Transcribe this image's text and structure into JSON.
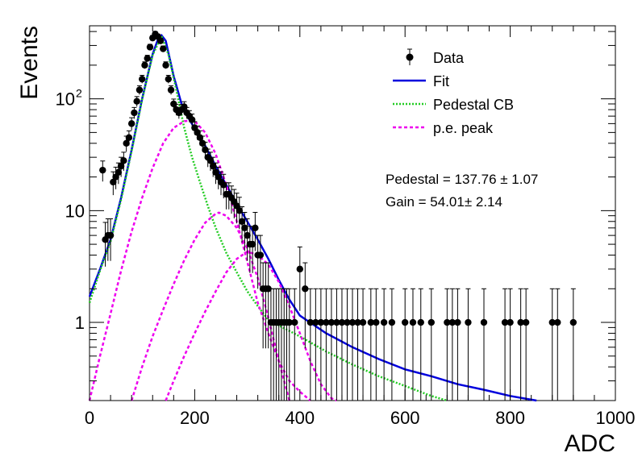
{
  "chart_data": {
    "type": "scatter",
    "title": "",
    "xlabel": "ADC",
    "ylabel": "Events",
    "xlim": [
      0,
      1000
    ],
    "ylim": [
      0.2,
      450
    ],
    "yscale": "log",
    "grid": false,
    "legend_position": "top-right",
    "x_ticks": [
      "0",
      "200",
      "400",
      "600",
      "800",
      "1000"
    ],
    "x_tick_values": [
      0,
      200,
      400,
      600,
      800,
      1000
    ],
    "y_tick_labels": [
      {
        "value": 1,
        "label": "1",
        "sup": ""
      },
      {
        "value": 10,
        "label": "10",
        "sup": ""
      },
      {
        "value": 100,
        "label": "10",
        "sup": "2"
      }
    ],
    "legend": [
      {
        "label": "Data",
        "kind": "marker",
        "color": "#000000"
      },
      {
        "label": "Fit",
        "kind": "solid",
        "color": "#0000dd"
      },
      {
        "label": "Pedestal CB",
        "kind": "dotted",
        "color": "#22cc22"
      },
      {
        "label": "p.e. peak",
        "kind": "dashed",
        "color": "#ee00ee"
      }
    ],
    "annotations": [
      "Pedestal = 137.76 ± 1.07",
      "Gain = 54.01± 2.14"
    ],
    "series": [
      {
        "name": "Data",
        "style": "points-with-errors",
        "color": "#000000",
        "x": [
          25,
          30,
          35,
          40,
          45,
          50,
          55,
          60,
          65,
          70,
          75,
          80,
          85,
          90,
          95,
          100,
          105,
          110,
          115,
          120,
          125,
          130,
          135,
          140,
          145,
          150,
          155,
          160,
          165,
          170,
          175,
          180,
          185,
          190,
          195,
          200,
          205,
          210,
          215,
          220,
          225,
          230,
          235,
          240,
          245,
          250,
          255,
          260,
          265,
          270,
          275,
          280,
          285,
          290,
          295,
          300,
          305,
          310,
          315,
          320,
          325,
          330,
          335,
          340,
          345,
          350,
          355,
          360,
          365,
          370,
          375,
          380,
          390,
          400,
          410,
          420,
          430,
          440,
          450,
          460,
          470,
          480,
          490,
          500,
          510,
          520,
          535,
          545,
          560,
          575,
          600,
          615,
          630,
          650,
          680,
          690,
          700,
          720,
          750,
          790,
          800,
          820,
          830,
          880,
          890,
          920
        ],
        "y": [
          23,
          5.5,
          6,
          6,
          18,
          20,
          22,
          25,
          28,
          40,
          45,
          60,
          75,
          95,
          120,
          150,
          200,
          230,
          290,
          350,
          380,
          360,
          330,
          280,
          200,
          150,
          120,
          90,
          80,
          75,
          80,
          85,
          75,
          70,
          65,
          55,
          50,
          45,
          40,
          35,
          30,
          28,
          25,
          22,
          20,
          18,
          17,
          14,
          14,
          13,
          12,
          11,
          10,
          8,
          7,
          6,
          5,
          5,
          7,
          4,
          4,
          2,
          2,
          2,
          1,
          1,
          1,
          1,
          1,
          1,
          1,
          1,
          1,
          3,
          2,
          1,
          1,
          1,
          1,
          1,
          1,
          1,
          1,
          1,
          1,
          1,
          1,
          1,
          1,
          1,
          1,
          1,
          1,
          1,
          1,
          1,
          1,
          1,
          1,
          1,
          1,
          1,
          1,
          1,
          1,
          1
        ]
      },
      {
        "name": "Fit",
        "style": "solid",
        "color": "#0000dd",
        "x": [
          0,
          20,
          40,
          60,
          80,
          100,
          120,
          130,
          137,
          145,
          160,
          175,
          190,
          205,
          220,
          240,
          260,
          280,
          300,
          320,
          340,
          360,
          380,
          400,
          450,
          500,
          550,
          600,
          650,
          700,
          750,
          800,
          850
        ],
        "y": [
          1.7,
          3,
          5.5,
          13,
          35,
          100,
          250,
          340,
          370,
          330,
          160,
          90,
          65,
          50,
          38,
          25,
          17,
          11.5,
          8,
          5.5,
          3.7,
          2.4,
          1.6,
          1.15,
          0.8,
          0.6,
          0.47,
          0.38,
          0.33,
          0.28,
          0.25,
          0.22,
          0.2
        ]
      },
      {
        "name": "Pedestal CB",
        "style": "dotted",
        "color": "#22cc22",
        "x": [
          0,
          20,
          40,
          60,
          80,
          100,
          120,
          137,
          150,
          165,
          180,
          195,
          210,
          225,
          240,
          260,
          280,
          300,
          320,
          340,
          400,
          450,
          500,
          550,
          600,
          650,
          680
        ],
        "y": [
          1.5,
          2.9,
          5.3,
          12.5,
          34,
          98,
          245,
          365,
          250,
          120,
          55,
          30,
          18,
          11,
          7,
          4.2,
          2.8,
          1.9,
          1.4,
          1.05,
          0.75,
          0.55,
          0.42,
          0.33,
          0.27,
          0.22,
          0.2
        ]
      },
      {
        "name": "p.e. peak 1",
        "style": "dashed",
        "color": "#ee00ee",
        "x": [
          0,
          20,
          40,
          60,
          80,
          100,
          120,
          140,
          160,
          180,
          192,
          200,
          220,
          240,
          260,
          280,
          300,
          320,
          340,
          360,
          380,
          400,
          420
        ],
        "y": [
          0.2,
          0.5,
          1.2,
          2.9,
          6.5,
          13,
          24,
          40,
          55,
          63,
          64,
          63,
          50,
          32,
          17,
          8,
          3.5,
          1.5,
          0.8,
          0.45,
          0.3,
          0.24,
          0.2
        ]
      },
      {
        "name": "p.e. peak 2",
        "style": "dashed",
        "color": "#ee00ee",
        "x": [
          80,
          100,
          120,
          140,
          160,
          180,
          200,
          220,
          240,
          246,
          260,
          280,
          300,
          320,
          340,
          360,
          380
        ],
        "y": [
          0.2,
          0.4,
          0.75,
          1.3,
          2.2,
          3.6,
          5.5,
          7.8,
          9.4,
          9.6,
          9,
          7,
          4.6,
          2.5,
          1.1,
          0.45,
          0.2
        ]
      },
      {
        "name": "p.e. peak 3",
        "style": "dashed",
        "color": "#ee00ee",
        "x": [
          145,
          160,
          180,
          200,
          220,
          240,
          260,
          280,
          300,
          320,
          340,
          360,
          380,
          400,
          420,
          440,
          460,
          470
        ],
        "y": [
          0.2,
          0.3,
          0.5,
          0.8,
          1.25,
          1.9,
          2.8,
          3.7,
          4.3,
          4,
          3.3,
          2.3,
          1.4,
          0.8,
          0.45,
          0.28,
          0.21,
          0.2
        ]
      }
    ]
  }
}
